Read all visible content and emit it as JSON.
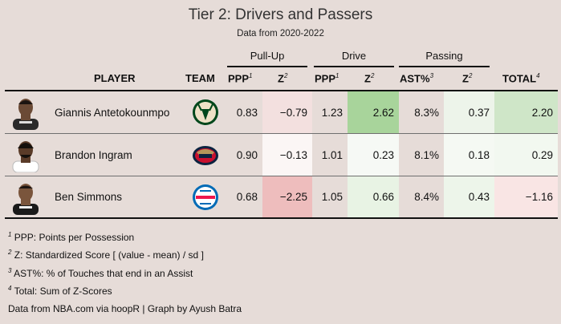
{
  "title": "Tier 2: Drivers and Passers",
  "subtitle": "Data from 2020-2022",
  "groups": {
    "pullup": "Pull-Up",
    "drive": "Drive",
    "passing": "Passing"
  },
  "columns": {
    "player": "PLAYER",
    "team": "TEAM",
    "ppp": "PPP",
    "ppp_sup": "1",
    "z": "Z",
    "z_sup": "2",
    "ast": "AST%",
    "ast_sup": "3",
    "total": "TOTAL",
    "total_sup": "4"
  },
  "rows": [
    {
      "player": "Giannis Antetokounmpo",
      "team_logo": "bucks-logo",
      "pu_ppp": "0.83",
      "pu_z": "−0.79",
      "dr_ppp": "1.23",
      "dr_z": "2.62",
      "ast": "8.3%",
      "ps_z": "0.37",
      "total": "2.20"
    },
    {
      "player": "Brandon Ingram",
      "team_logo": "pelicans-logo",
      "pu_ppp": "0.90",
      "pu_z": "−0.13",
      "dr_ppp": "1.01",
      "dr_z": "0.23",
      "ast": "8.1%",
      "ps_z": "0.18",
      "total": "0.29"
    },
    {
      "player": "Ben Simmons",
      "team_logo": "76ers-logo",
      "pu_ppp": "0.68",
      "pu_z": "−2.25",
      "dr_ppp": "1.05",
      "dr_z": "0.66",
      "ast": "8.4%",
      "ps_z": "0.43",
      "total": "−1.16"
    }
  ],
  "shading": {
    "row0": {
      "pu_z": "#f3e0df",
      "dr_z": "#a8d49b",
      "ps_z": "#edf4ea",
      "total": "#cfe6c8"
    },
    "row1": {
      "pu_z": "#fbf6f5",
      "dr_z": "#f6f9f5",
      "ps_z": "#f5f9f3",
      "total": "#f2f8f0"
    },
    "row2": {
      "pu_z": "#eebdbd",
      "dr_z": "#e8f3e4",
      "ps_z": "#edf5ea",
      "total": "#f9e5e4"
    }
  },
  "footnotes": [
    {
      "sup": "1",
      "text": "PPP: Points per Possession"
    },
    {
      "sup": "2",
      "text": "Z: Standardized Score [ (value - mean) / sd ]"
    },
    {
      "sup": "3",
      "text": "AST%: % of Touches that end in an Assist"
    },
    {
      "sup": "4",
      "text": "Total: Sum of Z-Scores"
    }
  ],
  "source": "Data from NBA.com via hoopR | Graph by Ayush Batra"
}
